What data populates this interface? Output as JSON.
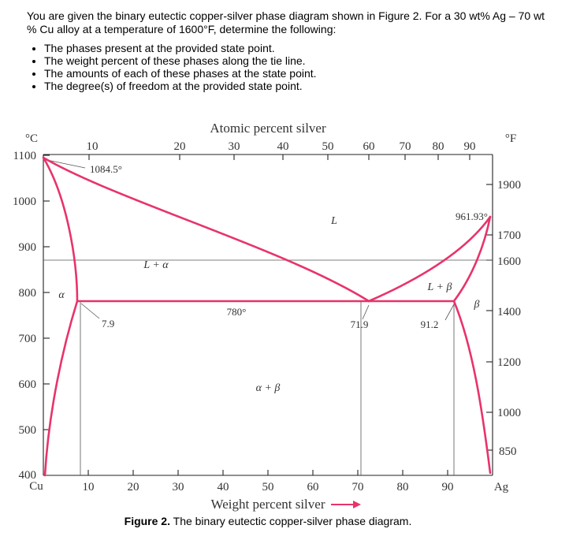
{
  "question": {
    "text": "You are given the binary eutectic copper-silver phase diagram shown in Figure 2.  For a 30 wt% Ag – 70 wt % Cu alloy at a temperature of 1600°F, determine the following:",
    "items": [
      "The phases present at the provided state point.",
      "The weight percent of these phases along the tie line.",
      "The amounts of each of these phases at the state point.",
      "The degree(s) of freedom at the provided state point."
    ]
  },
  "diagram": {
    "top_axis_title": "Atomic percent silver",
    "bottom_axis_title": "Weight percent silver",
    "left_unit": "°C",
    "right_unit": "°F",
    "caption": "Figure 2.  The binary eutectic copper-silver phase diagram.",
    "left_ticks": [
      "1100",
      "1000",
      "900",
      "800",
      "700",
      "600",
      "500",
      "400"
    ],
    "right_ticks": [
      "1900",
      "1700",
      "1600",
      "1400",
      "1200",
      "1000",
      "850"
    ],
    "top_ticks": [
      "10",
      "20",
      "30",
      "40",
      "50",
      "60",
      "70",
      "80",
      "90"
    ],
    "bottom_ticks": [
      "10",
      "20",
      "30",
      "40",
      "50",
      "60",
      "70",
      "80",
      "90"
    ],
    "bottom_left_label": "Cu",
    "bottom_right_label": "Ag",
    "labels": {
      "cu_melting": "1084.5°",
      "ag_melting": "961.93°",
      "eutectic_temp": "780°",
      "alpha_max": "7.9",
      "eutectic_comp": "71.9",
      "beta_max": "91.2"
    },
    "regions": {
      "liquid": "L",
      "l_alpha": "L + α",
      "l_beta": "L + β",
      "alpha": "α",
      "beta": "β",
      "alpha_beta": "α + β"
    },
    "colors": {
      "curves": "#e8336b",
      "lines": "#555555"
    }
  }
}
